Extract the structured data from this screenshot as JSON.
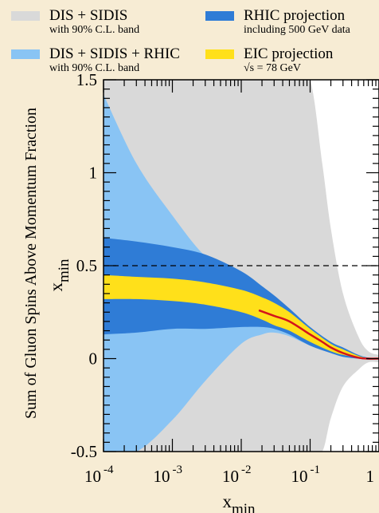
{
  "chart_data": {
    "type": "area",
    "xlabel": "x_min",
    "ylabel": "Sum of Gluon Spins Above Momentum Fraction x_min",
    "ylabel_main": "Sum of Gluon Spins Above Momentum Fraction",
    "ylabel_sub": "x",
    "ylabel_subscript": "min",
    "xlabel_main": "x",
    "xlabel_subscript": "min",
    "x_scale": "log",
    "xlim": [
      0.0001,
      1
    ],
    "ylim": [
      -0.5,
      1.5
    ],
    "x_ticks": [
      {
        "value": 0.0001,
        "base": "10",
        "exp": "-4"
      },
      {
        "value": 0.001,
        "base": "10",
        "exp": "-3"
      },
      {
        "value": 0.01,
        "base": "10",
        "exp": "-2"
      },
      {
        "value": 0.1,
        "base": "10",
        "exp": "-1"
      },
      {
        "value": 1,
        "base": "1",
        "exp": ""
      }
    ],
    "y_ticks": [
      {
        "value": -0.5,
        "label": "-0.5"
      },
      {
        "value": 0,
        "label": "0"
      },
      {
        "value": 0.5,
        "label": "0.5"
      },
      {
        "value": 1,
        "label": "1"
      },
      {
        "value": 1.5,
        "label": "1.5"
      }
    ],
    "reference_line": {
      "y": 0.5,
      "style": "dashed"
    },
    "legend_position": "top",
    "series": [
      {
        "name": "DIS + SIDIS",
        "note": "with 90% C.L. band",
        "color": "#d9d9d9",
        "x": [
          0.0001,
          0.0003,
          0.001,
          0.003,
          0.01,
          0.03,
          0.06,
          0.1,
          0.15,
          0.2,
          0.3,
          0.5,
          0.7,
          1.0
        ],
        "upper": [
          1.5,
          1.5,
          1.5,
          1.5,
          1.5,
          1.5,
          1.5,
          1.5,
          1.05,
          0.7,
          0.35,
          0.12,
          0.04,
          0.02
        ],
        "lower": [
          -0.5,
          -0.5,
          -0.5,
          -0.5,
          -0.5,
          -0.5,
          -0.5,
          -0.5,
          -0.5,
          -0.32,
          -0.15,
          -0.06,
          -0.02,
          -0.02
        ]
      },
      {
        "name": "DIS + SIDIS + RHIC",
        "note": "with 90% C.L. band",
        "color": "#89c4f4",
        "x": [
          0.0001,
          0.0003,
          0.001,
          0.003,
          0.01,
          0.02,
          0.03,
          0.05,
          0.1,
          0.2,
          0.3,
          0.5,
          0.7,
          1.0
        ],
        "upper": [
          1.42,
          1.05,
          0.77,
          0.55,
          0.4,
          0.34,
          0.3,
          0.24,
          0.15,
          0.08,
          0.05,
          0.02,
          0.005,
          0.0
        ],
        "lower": [
          -0.5,
          -0.5,
          -0.33,
          -0.12,
          0.08,
          0.13,
          0.14,
          0.12,
          0.07,
          0.03,
          0.01,
          0.0,
          -0.005,
          0.0
        ]
      },
      {
        "name": "RHIC projection",
        "note": "including 500 GeV data",
        "color": "#2f7cd6",
        "x": [
          0.0001,
          0.0003,
          0.001,
          0.003,
          0.01,
          0.02,
          0.03,
          0.05,
          0.1,
          0.2,
          0.3,
          0.5,
          0.7,
          1.0
        ],
        "upper": [
          0.65,
          0.63,
          0.6,
          0.56,
          0.47,
          0.39,
          0.34,
          0.27,
          0.17,
          0.09,
          0.06,
          0.02,
          0.005,
          0.0
        ],
        "lower": [
          0.13,
          0.14,
          0.16,
          0.16,
          0.17,
          0.17,
          0.16,
          0.13,
          0.07,
          0.03,
          0.01,
          0.0,
          -0.005,
          0.0
        ]
      },
      {
        "name": "EIC projection",
        "note": "√s = 78 GeV",
        "color": "#ffe01a",
        "x": [
          0.0001,
          0.0003,
          0.001,
          0.003,
          0.01,
          0.02,
          0.03,
          0.05,
          0.1,
          0.2,
          0.3,
          0.5,
          0.7,
          1.0
        ],
        "upper": [
          0.45,
          0.44,
          0.43,
          0.41,
          0.37,
          0.33,
          0.3,
          0.25,
          0.16,
          0.08,
          0.05,
          0.015,
          0.003,
          0.0
        ],
        "lower": [
          0.32,
          0.32,
          0.31,
          0.29,
          0.25,
          0.21,
          0.18,
          0.15,
          0.09,
          0.04,
          0.02,
          0.005,
          0.0,
          0.0
        ]
      },
      {
        "name": "central curve",
        "color": "#d4141b",
        "x": [
          0.018,
          0.03,
          0.05,
          0.1,
          0.15,
          0.2,
          0.3,
          0.5,
          0.7,
          1.0
        ],
        "y": [
          0.26,
          0.23,
          0.2,
          0.13,
          0.09,
          0.06,
          0.03,
          0.005,
          0.0,
          0.0
        ]
      }
    ]
  }
}
